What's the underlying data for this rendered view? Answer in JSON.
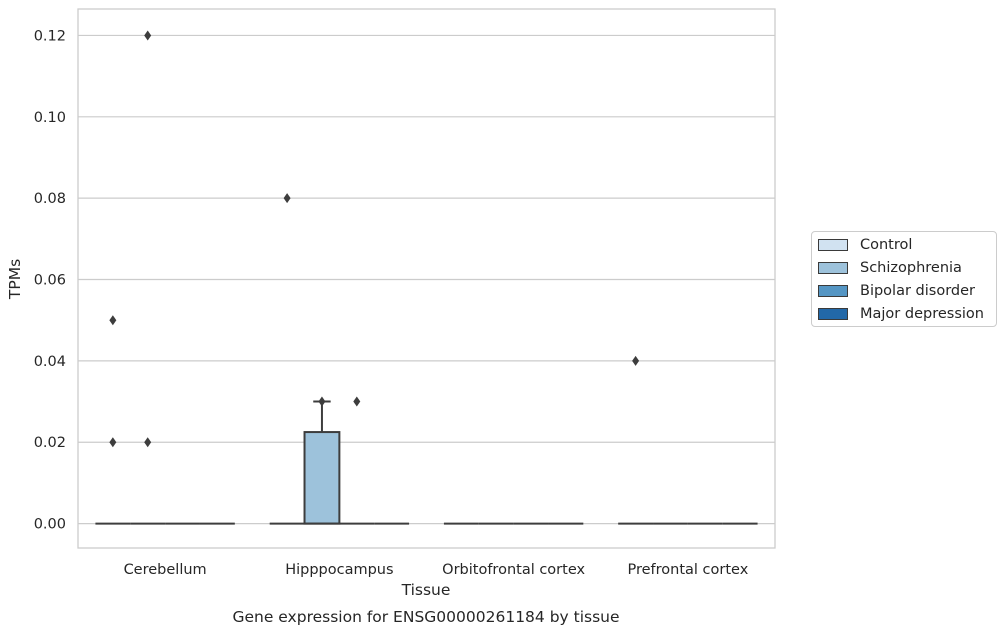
{
  "chart_data": {
    "type": "box",
    "title": "Gene expression for ENSG00000261184 by tissue",
    "xlabel": "Tissue",
    "ylabel": "TPMs",
    "categories": [
      "Cerebellum",
      "Hipppocampus",
      "Orbitofrontal cortex",
      "Prefrontal cortex"
    ],
    "ylim": [
      -0.006,
      0.1265
    ],
    "yticks": [
      0.0,
      0.02,
      0.04,
      0.06,
      0.08,
      0.1,
      0.12
    ],
    "ytick_labels": [
      "0.00",
      "0.02",
      "0.04",
      "0.06",
      "0.08",
      "0.10",
      "0.12"
    ],
    "grid": "horizontal",
    "legend_position": "right",
    "series": [
      {
        "name": "Control",
        "color": "#d1e2f1",
        "boxes": [
          {
            "category": "Cerebellum",
            "q1": 0,
            "median": 0,
            "q3": 0,
            "whisker_low": 0,
            "whisker_high": 0,
            "outliers": [
              0.05,
              0.02
            ]
          },
          {
            "category": "Hipppocampus",
            "q1": 0,
            "median": 0,
            "q3": 0,
            "whisker_low": 0,
            "whisker_high": 0,
            "outliers": [
              0.08
            ]
          },
          {
            "category": "Orbitofrontal cortex",
            "q1": 0,
            "median": 0,
            "q3": 0,
            "whisker_low": 0,
            "whisker_high": 0,
            "outliers": []
          },
          {
            "category": "Prefrontal cortex",
            "q1": 0,
            "median": 0,
            "q3": 0,
            "whisker_low": 0,
            "whisker_high": 0,
            "outliers": [
              0.04
            ]
          }
        ]
      },
      {
        "name": "Schizophrenia",
        "color": "#9dc2db",
        "boxes": [
          {
            "category": "Cerebellum",
            "q1": 0,
            "median": 0,
            "q3": 0,
            "whisker_low": 0,
            "whisker_high": 0,
            "outliers": [
              0.12,
              0.02
            ]
          },
          {
            "category": "Hipppocampus",
            "q1": 0,
            "median": 0,
            "q3": 0.0225,
            "whisker_low": 0,
            "whisker_high": 0.03,
            "outliers": [
              0.03
            ]
          },
          {
            "category": "Orbitofrontal cortex",
            "q1": 0,
            "median": 0,
            "q3": 0,
            "whisker_low": 0,
            "whisker_high": 0,
            "outliers": []
          },
          {
            "category": "Prefrontal cortex",
            "q1": 0,
            "median": 0,
            "q3": 0,
            "whisker_low": 0,
            "whisker_high": 0,
            "outliers": []
          }
        ]
      },
      {
        "name": "Bipolar disorder",
        "color": "#5596c4",
        "boxes": [
          {
            "category": "Cerebellum",
            "q1": 0,
            "median": 0,
            "q3": 0,
            "whisker_low": 0,
            "whisker_high": 0,
            "outliers": []
          },
          {
            "category": "Hipppocampus",
            "q1": 0,
            "median": 0,
            "q3": 0,
            "whisker_low": 0,
            "whisker_high": 0,
            "outliers": [
              0.03
            ]
          },
          {
            "category": "Orbitofrontal cortex",
            "q1": 0,
            "median": 0,
            "q3": 0,
            "whisker_low": 0,
            "whisker_high": 0,
            "outliers": []
          },
          {
            "category": "Prefrontal cortex",
            "q1": 0,
            "median": 0,
            "q3": 0,
            "whisker_low": 0,
            "whisker_high": 0,
            "outliers": []
          }
        ]
      },
      {
        "name": "Major depression",
        "color": "#2268a8",
        "boxes": [
          {
            "category": "Cerebellum",
            "q1": 0,
            "median": 0,
            "q3": 0,
            "whisker_low": 0,
            "whisker_high": 0,
            "outliers": []
          },
          {
            "category": "Hipppocampus",
            "q1": 0,
            "median": 0,
            "q3": 0,
            "whisker_low": 0,
            "whisker_high": 0,
            "outliers": []
          },
          {
            "category": "Orbitofrontal cortex",
            "q1": 0,
            "median": 0,
            "q3": 0,
            "whisker_low": 0,
            "whisker_high": 0,
            "outliers": []
          },
          {
            "category": "Prefrontal cortex",
            "q1": 0,
            "median": 0,
            "q3": 0,
            "whisker_low": 0,
            "whisker_high": 0,
            "outliers": []
          }
        ]
      }
    ]
  }
}
